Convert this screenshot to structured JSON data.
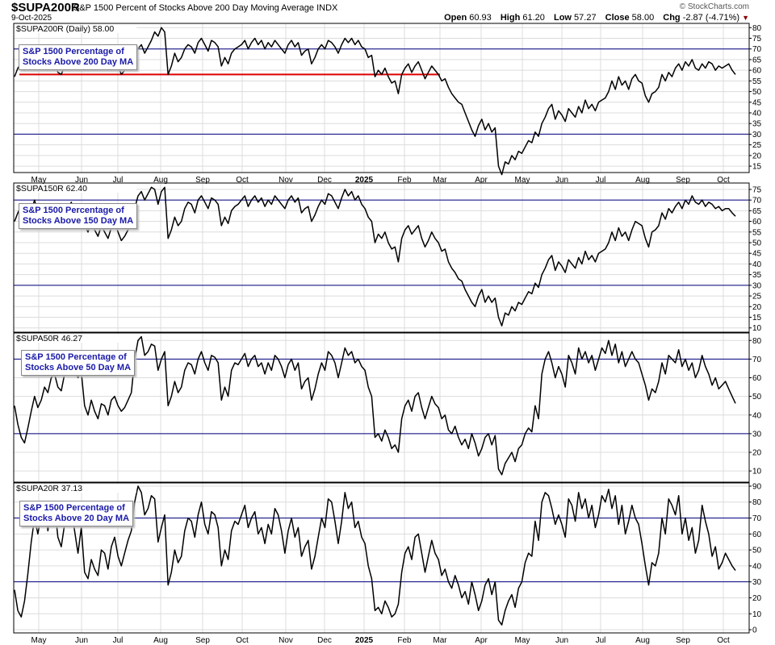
{
  "header": {
    "symbol": "$SUPA200R",
    "description": "S&P 1500 Percent of Stocks Above 200 Day Moving Average",
    "exchange": "INDX",
    "date": "9-Oct-2025",
    "brand": "© StockCharts.com",
    "open_label": "Open",
    "open": "60.93",
    "high_label": "High",
    "high": "61.20",
    "low_label": "Low",
    "low": "57.27",
    "close_label": "Close",
    "close": "58.00",
    "chg_label": "Chg",
    "chg": "-2.87 (-4.71%)",
    "chg_arrow": "▼",
    "down_color": "#8b0000"
  },
  "colors": {
    "line": "#000000",
    "reference_lines": "#000080",
    "moving_average_line": "#dd0000",
    "legend_text": "#1a1aa8",
    "grid": "#dcdcdc"
  },
  "x_axis_labels": [
    "May",
    "Jun",
    "Jul",
    "Aug",
    "Sep",
    "Oct",
    "Nov",
    "Dec",
    "2025",
    "Feb",
    "Mar",
    "Apr",
    "May",
    "Jun",
    "Jul",
    "Aug",
    "Sep",
    "Oct"
  ],
  "chart_data": [
    {
      "type": "line",
      "panel_label": "$SUPA200R (Daily) 58.00",
      "legend": "S&P 1500 Percentage of\nStocks Above 200 Day MA",
      "ylim": [
        12,
        82
      ],
      "yticks": [
        15,
        20,
        25,
        30,
        35,
        40,
        45,
        50,
        55,
        60,
        65,
        70,
        75,
        80
      ],
      "reference_lines": [
        30,
        70
      ],
      "horizontal_segment": {
        "value": 58,
        "from": "May",
        "to": "Mar"
      },
      "series": [
        {
          "values": [
            57,
            61,
            63,
            60,
            64,
            62,
            66,
            61,
            63,
            65,
            60,
            62,
            64,
            59,
            58,
            62,
            64,
            66,
            63,
            61,
            65,
            68,
            67,
            70,
            66,
            64,
            68,
            63,
            61,
            65,
            66,
            62,
            58,
            60,
            63,
            65,
            68,
            70,
            72,
            68,
            71,
            74,
            78,
            76,
            80,
            78,
            58,
            62,
            68,
            64,
            66,
            70,
            72,
            71,
            68,
            73,
            75,
            72,
            69,
            74,
            73,
            71,
            62,
            66,
            63,
            68,
            70,
            71,
            72,
            74,
            70,
            73,
            75,
            72,
            74,
            70,
            73,
            71,
            74,
            72,
            70,
            68,
            72,
            74,
            71,
            73,
            67,
            69,
            70,
            63,
            66,
            70,
            72,
            70,
            74,
            73,
            71,
            68,
            72,
            75,
            73,
            75,
            72,
            74,
            71,
            70,
            66,
            67,
            57,
            60,
            58,
            61,
            57,
            54,
            55,
            49,
            58,
            61,
            63,
            59,
            62,
            64,
            60,
            56,
            59,
            62,
            60,
            58,
            55,
            56,
            52,
            49,
            47,
            45,
            44,
            40,
            36,
            32,
            29,
            34,
            37,
            32,
            35,
            31,
            33,
            15,
            11,
            17,
            16,
            20,
            18,
            22,
            21,
            24,
            27,
            26,
            31,
            29,
            35,
            38,
            42,
            44,
            37,
            41,
            39,
            36,
            42,
            40,
            38,
            43,
            40,
            46,
            42,
            44,
            41,
            45,
            46,
            47,
            50,
            55,
            51,
            57,
            53,
            55,
            51,
            56,
            58,
            55,
            54,
            48,
            45,
            49,
            50,
            52,
            58,
            55,
            59,
            57,
            61,
            63,
            60,
            64,
            62,
            65,
            61,
            60,
            63,
            61,
            64,
            63,
            60,
            62,
            61,
            62,
            63,
            60,
            58
          ]
        }
      ]
    },
    {
      "type": "line",
      "panel_label": "$SUPA150R 62.40",
      "legend": "S&P 1500 Percentage of\nStocks Above 150 Day MA",
      "ylim": [
        8,
        78
      ],
      "yticks": [
        10,
        15,
        20,
        25,
        30,
        35,
        40,
        45,
        50,
        55,
        60,
        65,
        70,
        75
      ],
      "reference_lines": [
        30,
        70
      ],
      "series": [
        {
          "values": [
            60,
            64,
            67,
            63,
            68,
            65,
            70,
            64,
            66,
            68,
            62,
            65,
            67,
            60,
            58,
            63,
            66,
            69,
            64,
            62,
            66,
            58,
            55,
            60,
            56,
            53,
            58,
            55,
            52,
            57,
            60,
            55,
            51,
            53,
            56,
            59,
            66,
            72,
            74,
            70,
            73,
            76,
            75,
            68,
            74,
            76,
            52,
            56,
            62,
            58,
            60,
            66,
            69,
            68,
            64,
            70,
            72,
            69,
            66,
            71,
            70,
            68,
            58,
            62,
            59,
            65,
            67,
            68,
            70,
            72,
            67,
            70,
            72,
            69,
            71,
            67,
            70,
            68,
            72,
            70,
            68,
            66,
            70,
            72,
            69,
            71,
            64,
            66,
            67,
            60,
            63,
            67,
            70,
            68,
            73,
            72,
            69,
            66,
            71,
            75,
            72,
            74,
            70,
            72,
            68,
            66,
            62,
            60,
            50,
            54,
            52,
            55,
            50,
            47,
            48,
            41,
            52,
            56,
            58,
            54,
            56,
            58,
            52,
            48,
            51,
            55,
            52,
            50,
            46,
            47,
            41,
            38,
            36,
            33,
            32,
            28,
            25,
            22,
            20,
            25,
            28,
            22,
            25,
            22,
            24,
            15,
            11,
            17,
            16,
            20,
            18,
            22,
            21,
            24,
            27,
            26,
            31,
            29,
            35,
            38,
            42,
            44,
            37,
            41,
            39,
            36,
            42,
            40,
            38,
            43,
            40,
            46,
            42,
            44,
            41,
            45,
            46,
            47,
            50,
            55,
            51,
            57,
            53,
            55,
            51,
            56,
            60,
            59,
            58,
            52,
            48,
            55,
            56,
            58,
            64,
            61,
            66,
            64,
            67,
            69,
            66,
            70,
            68,
            72,
            69,
            68,
            70,
            67,
            69,
            68,
            66,
            67,
            65,
            66,
            66,
            64,
            62.4
          ]
        }
      ]
    },
    {
      "type": "line",
      "panel_label": "$SUPA50R 46.27",
      "legend": "S&P 1500 Percentage of\nStocks Above 50 Day MA",
      "ylim": [
        4,
        84
      ],
      "yticks": [
        10,
        20,
        30,
        40,
        50,
        60,
        70,
        80
      ],
      "reference_lines": [
        30,
        70
      ],
      "series": [
        {
          "values": [
            45,
            35,
            28,
            25,
            33,
            42,
            50,
            44,
            48,
            55,
            52,
            60,
            62,
            55,
            53,
            62,
            66,
            70,
            64,
            60,
            63,
            45,
            40,
            48,
            42,
            38,
            46,
            45,
            40,
            48,
            50,
            45,
            42,
            44,
            48,
            52,
            70,
            80,
            82,
            72,
            74,
            78,
            77,
            64,
            70,
            74,
            45,
            50,
            58,
            52,
            55,
            64,
            68,
            67,
            62,
            70,
            74,
            68,
            64,
            72,
            71,
            68,
            48,
            55,
            50,
            64,
            68,
            67,
            70,
            73,
            66,
            70,
            72,
            66,
            68,
            62,
            68,
            64,
            72,
            70,
            66,
            60,
            67,
            70,
            64,
            68,
            54,
            58,
            60,
            48,
            54,
            62,
            68,
            64,
            74,
            72,
            68,
            60,
            68,
            76,
            72,
            74,
            68,
            70,
            66,
            64,
            55,
            50,
            28,
            30,
            26,
            32,
            28,
            22,
            24,
            20,
            38,
            45,
            48,
            42,
            50,
            52,
            44,
            38,
            44,
            50,
            46,
            44,
            38,
            40,
            32,
            30,
            34,
            28,
            24,
            27,
            22,
            30,
            25,
            18,
            22,
            28,
            30,
            24,
            29,
            11,
            8,
            14,
            17,
            20,
            15,
            22,
            24,
            30,
            33,
            31,
            45,
            38,
            62,
            70,
            74,
            68,
            60,
            66,
            62,
            55,
            72,
            68,
            62,
            76,
            70,
            74,
            68,
            72,
            64,
            70,
            76,
            73,
            80,
            72,
            78,
            68,
            74,
            66,
            70,
            74,
            70,
            68,
            62,
            56,
            48,
            54,
            52,
            58,
            68,
            62,
            72,
            70,
            68,
            75,
            66,
            70,
            64,
            68,
            60,
            64,
            72,
            66,
            62,
            56,
            60,
            54,
            56,
            58,
            54,
            50,
            46.27
          ]
        }
      ]
    },
    {
      "type": "line",
      "panel_label": "$SUPA20R 37.13",
      "legend": "S&P 1500 Percentage of\nStocks Above 20 Day MA",
      "ylim": [
        -2,
        92
      ],
      "yticks": [
        0,
        10,
        20,
        30,
        40,
        50,
        60,
        70,
        80,
        90
      ],
      "reference_lines": [
        30,
        70
      ],
      "series": [
        {
          "values": [
            25,
            12,
            8,
            18,
            35,
            55,
            70,
            60,
            72,
            80,
            62,
            75,
            78,
            58,
            52,
            66,
            72,
            76,
            62,
            48,
            64,
            36,
            32,
            44,
            38,
            34,
            50,
            48,
            38,
            52,
            58,
            46,
            40,
            48,
            56,
            62,
            80,
            90,
            86,
            72,
            76,
            84,
            82,
            55,
            64,
            72,
            28,
            36,
            50,
            42,
            46,
            62,
            70,
            68,
            58,
            72,
            80,
            66,
            60,
            74,
            72,
            64,
            40,
            50,
            44,
            62,
            68,
            66,
            72,
            78,
            64,
            70,
            74,
            60,
            64,
            54,
            66,
            60,
            76,
            72,
            62,
            48,
            62,
            70,
            58,
            64,
            46,
            52,
            56,
            38,
            46,
            58,
            70,
            64,
            82,
            80,
            68,
            54,
            68,
            86,
            76,
            80,
            64,
            68,
            58,
            54,
            40,
            32,
            12,
            14,
            10,
            18,
            14,
            8,
            10,
            16,
            36,
            48,
            52,
            44,
            58,
            60,
            48,
            36,
            46,
            56,
            48,
            44,
            34,
            38,
            30,
            26,
            34,
            28,
            20,
            24,
            16,
            30,
            22,
            12,
            18,
            28,
            32,
            22,
            30,
            6,
            3,
            12,
            18,
            22,
            14,
            26,
            30,
            42,
            48,
            46,
            68,
            56,
            80,
            86,
            84,
            76,
            66,
            72,
            66,
            58,
            82,
            78,
            68,
            86,
            76,
            82,
            70,
            78,
            64,
            72,
            84,
            80,
            88,
            76,
            84,
            66,
            78,
            60,
            68,
            78,
            70,
            66,
            54,
            40,
            28,
            42,
            40,
            48,
            70,
            60,
            82,
            78,
            72,
            84,
            60,
            70,
            56,
            64,
            48,
            56,
            78,
            68,
            60,
            46,
            52,
            38,
            42,
            48,
            44,
            40,
            37.13
          ]
        }
      ]
    }
  ]
}
